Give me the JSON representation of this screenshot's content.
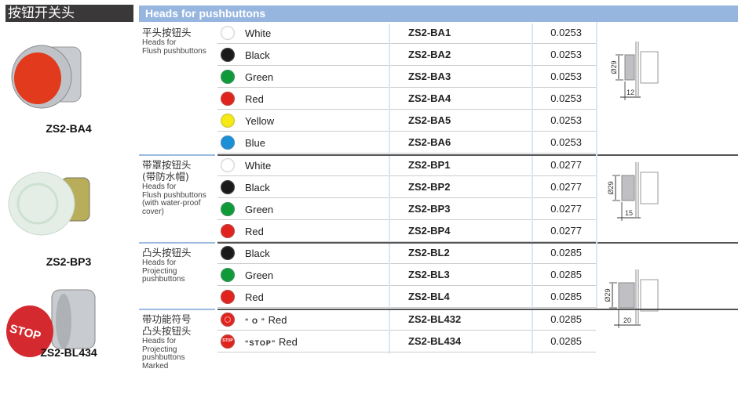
{
  "category_title": "按钮开关头",
  "header": "Heads for pushbuttons",
  "products": [
    {
      "code": "ZS2-BA4",
      "color": "#e23a1c"
    },
    {
      "code": "ZS2-BP3",
      "color": "#e4eee6"
    },
    {
      "code": "ZS2-BL434",
      "color": "#d42a2f",
      "marking": "STOP"
    }
  ],
  "groups": [
    {
      "cn": "平头按钮头",
      "en": "Heads for\nFlush pushbuttons",
      "dim": "12",
      "dia": "Ø29",
      "rows": [
        {
          "name": "White",
          "swatch": "#ffffff",
          "code": "ZS2-BA1",
          "price": "0.0253"
        },
        {
          "name": "Black",
          "swatch": "#1a1a1a",
          "code": "ZS2-BA2",
          "price": "0.0253"
        },
        {
          "name": "Green",
          "swatch": "#0f9a3a",
          "code": "ZS2-BA3",
          "price": "0.0253"
        },
        {
          "name": "Red",
          "swatch": "#e0231d",
          "code": "ZS2-BA4",
          "price": "0.0253"
        },
        {
          "name": "Yellow",
          "swatch": "#f6ea14",
          "code": "ZS2-BA5",
          "price": "0.0253"
        },
        {
          "name": "Blue",
          "swatch": "#1b8fd8",
          "code": "ZS2-BA6",
          "price": "0.0253"
        }
      ]
    },
    {
      "cn": "带罩按钮头\n(带防水帽)",
      "en": "Heads for\nFlush pushbuttons\n(with water-proof\ncover)",
      "dim": "15",
      "dia": "Ø29",
      "rows": [
        {
          "name": "White",
          "swatch": "#ffffff",
          "code": "ZS2-BP1",
          "price": "0.0277"
        },
        {
          "name": "Black",
          "swatch": "#1a1a1a",
          "code": "ZS2-BP2",
          "price": "0.0277"
        },
        {
          "name": "Green",
          "swatch": "#0f9a3a",
          "code": "ZS2-BP3",
          "price": "0.0277"
        },
        {
          "name": "Red",
          "swatch": "#e0231d",
          "code": "ZS2-BP4",
          "price": "0.0277"
        }
      ]
    },
    {
      "cn": "凸头按钮头",
      "en": "Heads for\nProjecting\npushbuttons",
      "dim": "20",
      "dia": "Ø29",
      "rows": [
        {
          "name": "Black",
          "swatch": "#1a1a1a",
          "code": "ZS2-BL2",
          "price": "0.0285"
        },
        {
          "name": "Green",
          "swatch": "#0f9a3a",
          "code": "ZS2-BL3",
          "price": "0.0285"
        },
        {
          "name": "Red",
          "swatch": "#e0231d",
          "code": "ZS2-BL4",
          "price": "0.0285"
        }
      ]
    },
    {
      "cn": "带功能符号\n凸头按钮头",
      "en": "Heads for\nProjecting\npushbuttons\nMarked",
      "rows": [
        {
          "mark": "“ O ”",
          "name": "Red",
          "swatch": "#e0231d",
          "symbol": "O",
          "code": "ZS2-BL432",
          "price": "0.0285"
        },
        {
          "mark": "“STOP”",
          "name": "Red",
          "swatch": "#e0231d",
          "symbol": "STOP",
          "code": "ZS2-BL434",
          "price": "0.0285"
        }
      ]
    }
  ]
}
